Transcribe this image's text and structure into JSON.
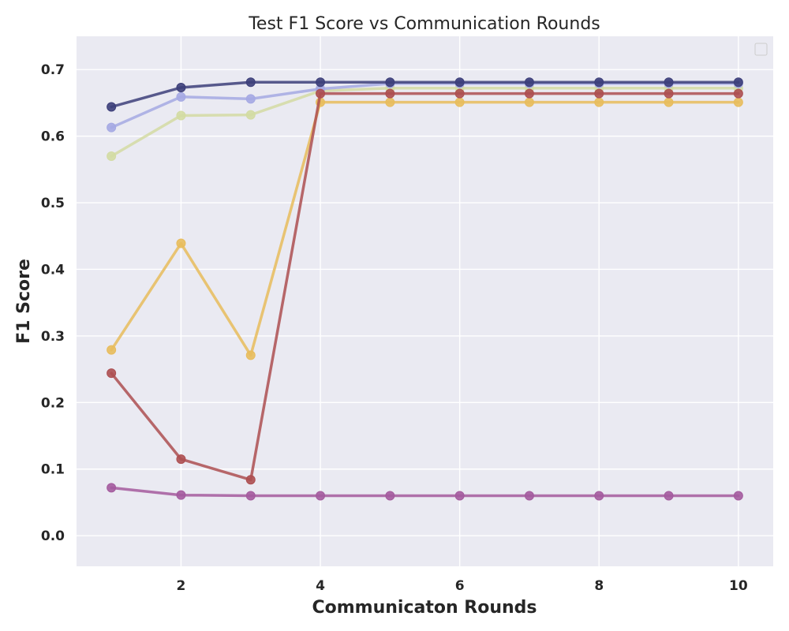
{
  "chart_data": {
    "type": "line",
    "title": "Test F1 Score vs Communication Rounds",
    "xlabel": "Communicaton Rounds",
    "ylabel": "F1 Score",
    "xlim": [
      0.5,
      10.5
    ],
    "ylim": [
      -0.046,
      0.75
    ],
    "xticks": [
      2,
      4,
      6,
      8,
      10
    ],
    "xtick_labels": [
      "2",
      "4",
      "6",
      "8",
      "10"
    ],
    "yticks": [
      0.0,
      0.1,
      0.2,
      0.3,
      0.4,
      0.5,
      0.6,
      0.7
    ],
    "ytick_labels": [
      "0.0",
      "0.1",
      "0.2",
      "0.3",
      "0.4",
      "0.5",
      "0.6",
      "0.7"
    ],
    "grid": true,
    "legend": "top-right",
    "background": "#eaeaf2",
    "x": [
      1,
      2,
      3,
      4,
      5,
      6,
      7,
      8,
      9,
      10
    ],
    "series": [
      {
        "color": "#d3dba3",
        "values": [
          0.57,
          0.631,
          0.632,
          0.668,
          0.672,
          0.672,
          0.672,
          0.672,
          0.672,
          0.672
        ]
      },
      {
        "color": "#a5a9e3",
        "values": [
          0.613,
          0.659,
          0.656,
          0.671,
          0.679,
          0.679,
          0.679,
          0.679,
          0.679,
          0.679
        ]
      },
      {
        "color": "#3d3f7a",
        "values": [
          0.644,
          0.673,
          0.681,
          0.681,
          0.681,
          0.681,
          0.681,
          0.681,
          0.681,
          0.681
        ]
      },
      {
        "color": "#e8bc5c",
        "values": [
          0.279,
          0.439,
          0.271,
          0.651,
          0.651,
          0.651,
          0.651,
          0.651,
          0.651,
          0.651
        ]
      },
      {
        "color": "#ad4f51",
        "values": [
          0.244,
          0.115,
          0.084,
          0.664,
          0.664,
          0.664,
          0.664,
          0.664,
          0.664,
          0.664
        ]
      },
      {
        "color": "#a45b9e",
        "values": [
          0.072,
          0.061,
          0.06,
          0.06,
          0.06,
          0.06,
          0.06,
          0.06,
          0.06,
          0.06
        ]
      }
    ]
  }
}
